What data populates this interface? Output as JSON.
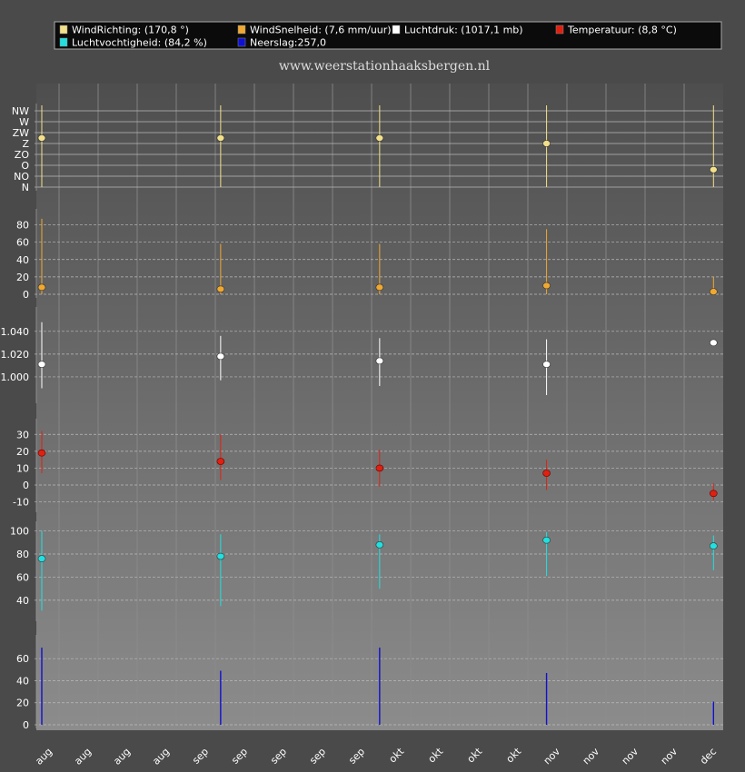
{
  "site": "www.weerstationhaaksbergen.nl",
  "legend": [
    {
      "key": "wind_direction",
      "label": "WindRichting: (170,8 °)",
      "color": "#f2e08a"
    },
    {
      "key": "wind_speed",
      "label": "WindSnelheid: (7,6 mm/uur)",
      "color": "#f0a830"
    },
    {
      "key": "pressure",
      "label": "Luchtdruk: (1017,1 mb)",
      "color": "#ffffff"
    },
    {
      "key": "temperature",
      "label": "Temperatuur: (8,8 °C)",
      "color": "#e02010"
    },
    {
      "key": "humidity",
      "label": "Luchtvochtigheid: (84,2 %)",
      "color": "#20e0e0"
    },
    {
      "key": "precipitation",
      "label": "Neerslag:257,0",
      "color": "#1010d0"
    }
  ],
  "x_ticks": [
    "aug",
    "aug",
    "aug",
    "aug",
    "sep",
    "sep",
    "sep",
    "sep",
    "sep",
    "okt",
    "okt",
    "okt",
    "okt",
    "nov",
    "nov",
    "nov",
    "nov",
    "dec"
  ],
  "chart_data": [
    {
      "type": "scatter",
      "key": "wind_direction",
      "categories_index": [
        0,
        4.5,
        8.5,
        12.7,
        16.9
      ],
      "y_tick_labels": [
        "N",
        "NO",
        "O",
        "ZO",
        "Z",
        "ZW",
        "W",
        "NW"
      ],
      "ylim": [
        0,
        7
      ],
      "values": [
        4.5,
        4.5,
        4.5,
        4.0,
        1.6
      ],
      "low": [
        0,
        0,
        0,
        0,
        0
      ],
      "high": [
        7.5,
        7.5,
        7.5,
        7.5,
        7.5
      ]
    },
    {
      "type": "scatter",
      "key": "wind_speed",
      "y_ticks": [
        0,
        20,
        40,
        60,
        80
      ],
      "ylim": [
        0,
        90
      ],
      "values": [
        8,
        6,
        8,
        10,
        3
      ],
      "low": [
        0,
        0,
        0,
        0,
        0
      ],
      "high": [
        87,
        58,
        58,
        75,
        20
      ]
    },
    {
      "type": "scatter",
      "key": "pressure",
      "y_ticks": [
        1000,
        1020,
        1040
      ],
      "y_tick_labels": [
        "1.000",
        "1.020",
        "1.040"
      ],
      "ylim": [
        980,
        1055
      ],
      "values": [
        1011,
        1018,
        1014,
        1011,
        1030
      ],
      "low": [
        990,
        997,
        992,
        984,
        1030
      ],
      "high": [
        1048,
        1036,
        1034,
        1033,
        1030
      ]
    },
    {
      "type": "scatter",
      "key": "temperature",
      "y_ticks": [
        -10,
        0,
        10,
        20,
        30
      ],
      "ylim": [
        -14,
        35
      ],
      "values": [
        19,
        14,
        10,
        7,
        -5
      ],
      "low": [
        7,
        3,
        -1,
        -3,
        -9
      ],
      "high": [
        32,
        30,
        21,
        15,
        1
      ]
    },
    {
      "type": "scatter",
      "key": "humidity",
      "y_ticks": [
        40,
        60,
        80,
        100
      ],
      "ylim": [
        25,
        102
      ],
      "values": [
        76,
        78,
        88,
        92,
        87
      ],
      "low": [
        31,
        35,
        50,
        61,
        66
      ],
      "high": [
        100,
        97,
        97,
        99,
        96
      ]
    },
    {
      "type": "bar",
      "key": "precipitation",
      "y_ticks": [
        0,
        20,
        40,
        60
      ],
      "ylim": [
        0,
        75
      ],
      "values": [
        70,
        49,
        70,
        47,
        21
      ]
    }
  ]
}
